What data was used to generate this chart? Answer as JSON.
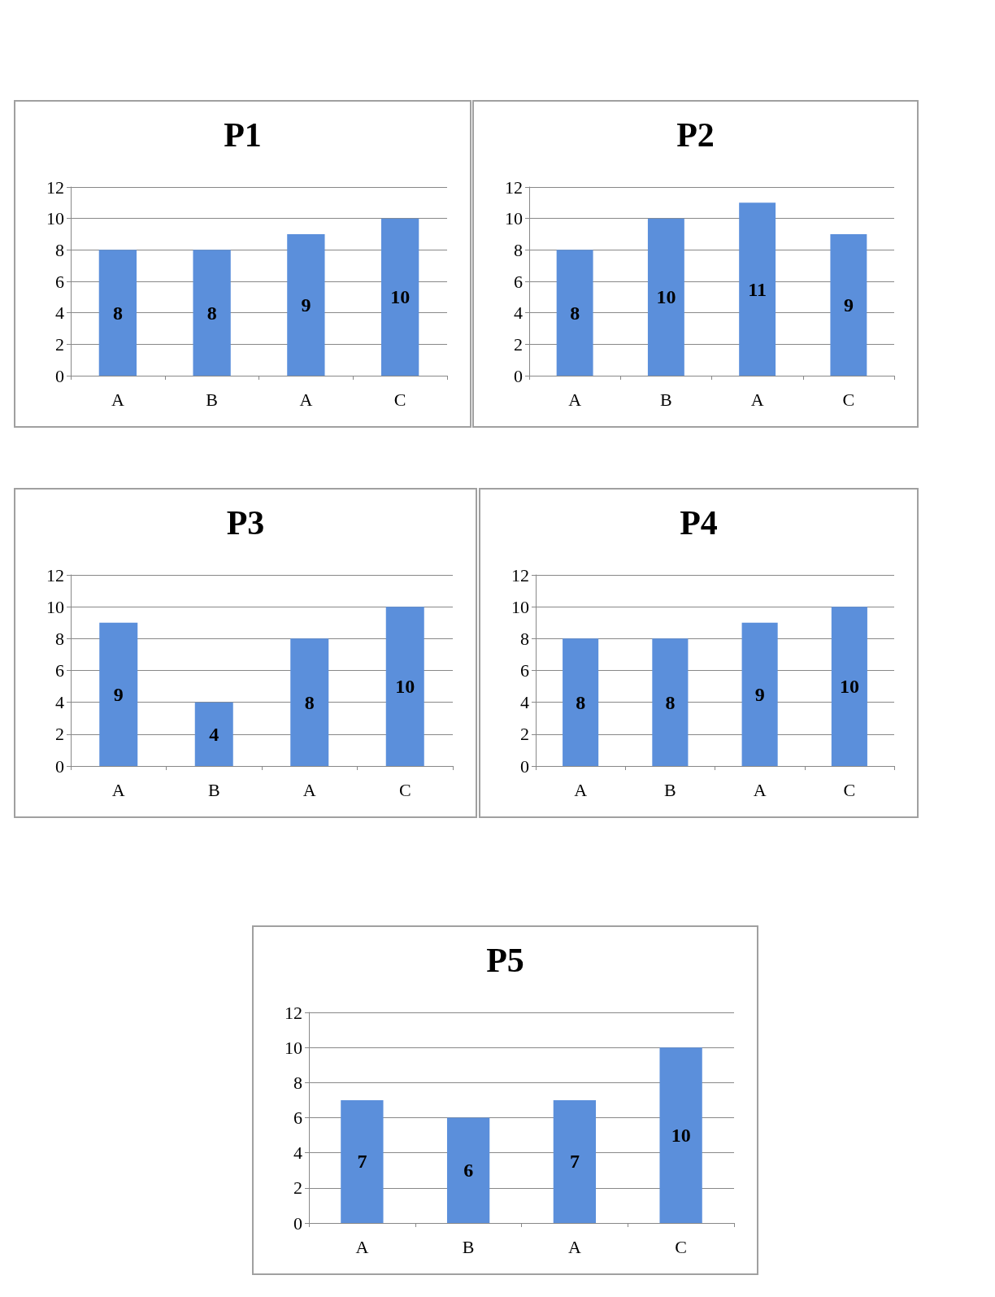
{
  "chart_data": [
    {
      "type": "bar",
      "title": "P1",
      "categories": [
        "A",
        "B",
        "A",
        "C"
      ],
      "values": [
        8,
        8,
        9,
        10
      ],
      "color": "#5b8fdb",
      "ylim": [
        0,
        12
      ],
      "yticks": [
        0,
        2,
        4,
        6,
        8,
        10,
        12
      ],
      "grid": "y",
      "data_labels": true
    },
    {
      "type": "bar",
      "title": "P2",
      "categories": [
        "A",
        "B",
        "A",
        "C"
      ],
      "values": [
        8,
        10,
        11,
        9
      ],
      "color": "#5b8fdb",
      "ylim": [
        0,
        12
      ],
      "yticks": [
        0,
        2,
        4,
        6,
        8,
        10,
        12
      ],
      "grid": "y",
      "data_labels": true
    },
    {
      "type": "bar",
      "title": "P3",
      "categories": [
        "A",
        "B",
        "A",
        "C"
      ],
      "values": [
        9,
        4,
        8,
        10
      ],
      "color": "#5b8fdb",
      "ylim": [
        0,
        12
      ],
      "yticks": [
        0,
        2,
        4,
        6,
        8,
        10,
        12
      ],
      "grid": "y",
      "data_labels": true
    },
    {
      "type": "bar",
      "title": "P4",
      "categories": [
        "A",
        "B",
        "A",
        "C"
      ],
      "values": [
        8,
        8,
        9,
        10
      ],
      "color": "#5b8fdb",
      "ylim": [
        0,
        12
      ],
      "yticks": [
        0,
        2,
        4,
        6,
        8,
        10,
        12
      ],
      "grid": "y",
      "data_labels": true
    },
    {
      "type": "bar",
      "title": "P5",
      "categories": [
        "A",
        "B",
        "A",
        "C"
      ],
      "values": [
        7,
        6,
        7,
        10
      ],
      "color": "#5b8fdb",
      "ylim": [
        0,
        12
      ],
      "yticks": [
        0,
        2,
        4,
        6,
        8,
        10,
        12
      ],
      "grid": "y",
      "data_labels": true
    }
  ]
}
